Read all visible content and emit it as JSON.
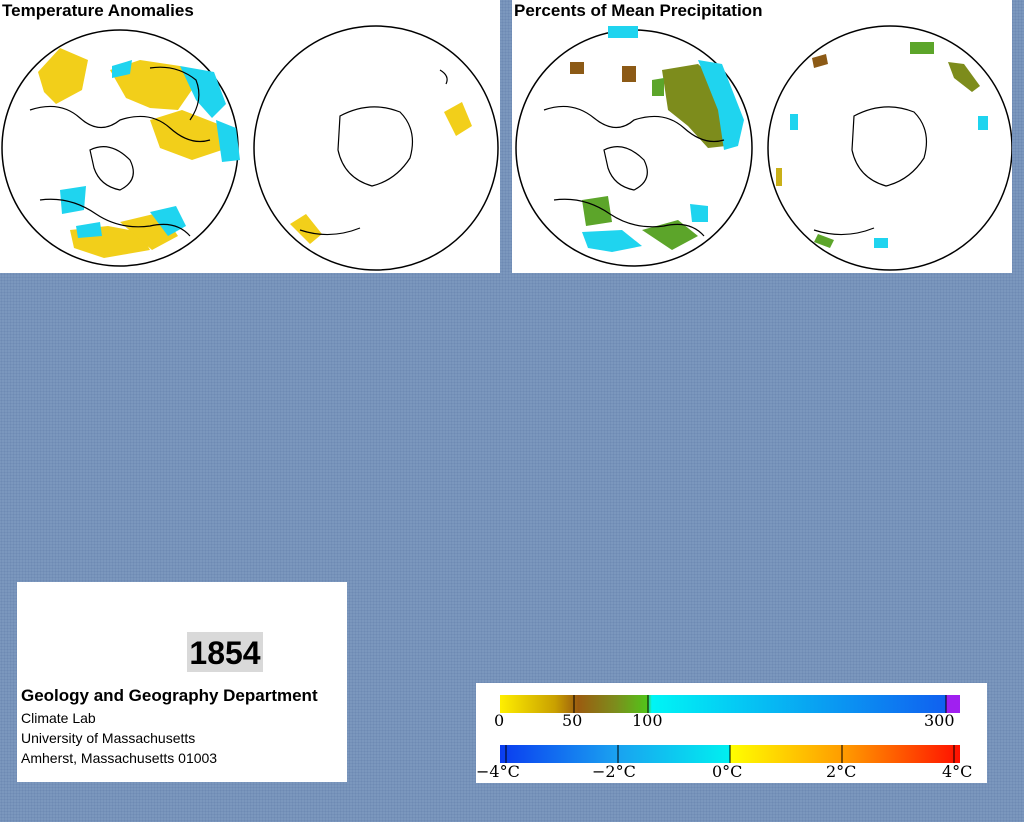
{
  "panels": {
    "temperature": {
      "title": "Temperature Anomalies"
    },
    "precipitation": {
      "title": "Percents of Mean Precipitation"
    }
  },
  "info": {
    "year": "1854",
    "department": "Geology and Geography Department",
    "lab": "Climate Lab",
    "university": "University of Massachusetts",
    "address": "Amherst, Massachusetts 01003"
  },
  "legend": {
    "precipitation_ticks": [
      "0",
      "50",
      "100",
      "300"
    ],
    "temperature_ticks": [
      "−4°C",
      "−2°C",
      "0°C",
      "2°C",
      "4°C"
    ]
  },
  "colors": {
    "background": "#7b97bd",
    "warm_yellow": "#f5d20c",
    "cool_cyan": "#1fd4ef",
    "olive": "#7d8c1c",
    "green": "#5ca52a",
    "brown": "#8c5a16",
    "purple": "#a020f0"
  }
}
